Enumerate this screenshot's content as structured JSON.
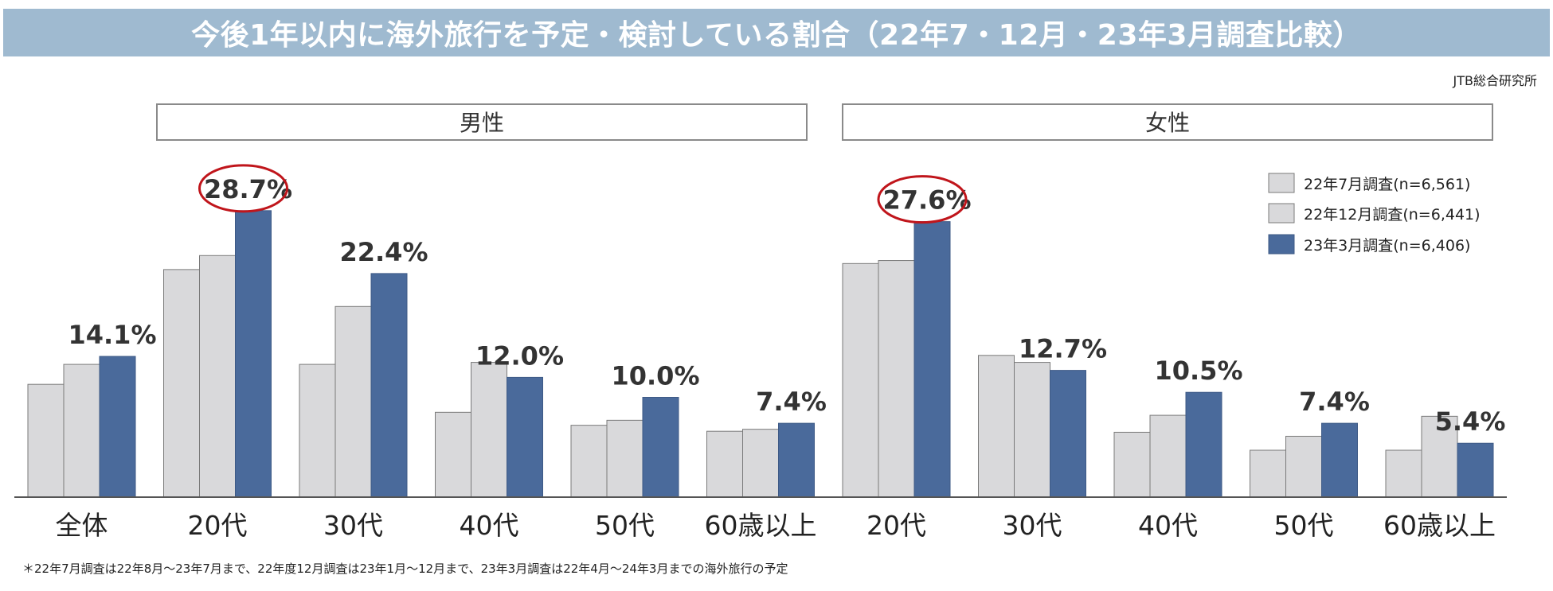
{
  "title": "今後1年以内に海外旅行を予定・検討している割合（22年7・12月・23年3月調査比較）",
  "source": "JTB総合研究所",
  "footnote": "＊22年7月調査は22年8月～23年7月まで、22年度12月調査は23年1月～12月まで、23年3月調査は22年4月～24年3月までの海外旅行の予定",
  "colors": {
    "gray": "#d9d9db",
    "blue": "#4a6a9b",
    "highlight": "#c0151b",
    "axis": "#555555",
    "label": "#333333"
  },
  "chart_data": {
    "type": "bar",
    "group_labels": [
      "男性",
      "女性"
    ],
    "categories": [
      "全体",
      "20代",
      "30代",
      "40代",
      "50代",
      "60歳以上",
      "20代",
      "30代",
      "40代",
      "50代",
      "60歳以上"
    ],
    "category_group": [
      0,
      0,
      0,
      0,
      0,
      0,
      1,
      1,
      1,
      1,
      1
    ],
    "ylim": [
      0,
      32
    ],
    "series": [
      {
        "name": "22年7月調査(n=6,561)",
        "color": "#d9d9db",
        "values": [
          11.3,
          22.8,
          13.3,
          8.5,
          7.2,
          6.6,
          23.4,
          14.2,
          6.5,
          4.7,
          4.7
        ]
      },
      {
        "name": "22年12月調査(n=6,441)",
        "color": "#d9d9db",
        "values": [
          13.3,
          24.2,
          19.1,
          13.5,
          7.7,
          6.8,
          23.7,
          13.5,
          8.2,
          6.1,
          8.1
        ]
      },
      {
        "name": "23年3月調査(n=6,406)",
        "color": "#4a6a9b",
        "values": [
          14.1,
          28.7,
          22.4,
          12.0,
          10.0,
          7.4,
          27.6,
          12.7,
          10.5,
          7.4,
          5.4
        ]
      }
    ],
    "data_labels": [
      "14.1%",
      "28.7%",
      "22.4%",
      "12.0%",
      "10.0%",
      "7.4%",
      "27.6%",
      "12.7%",
      "10.5%",
      "7.4%",
      "5.4%"
    ],
    "highlighted_categories": [
      1,
      6
    ],
    "legend": "top-right",
    "grid": false
  }
}
